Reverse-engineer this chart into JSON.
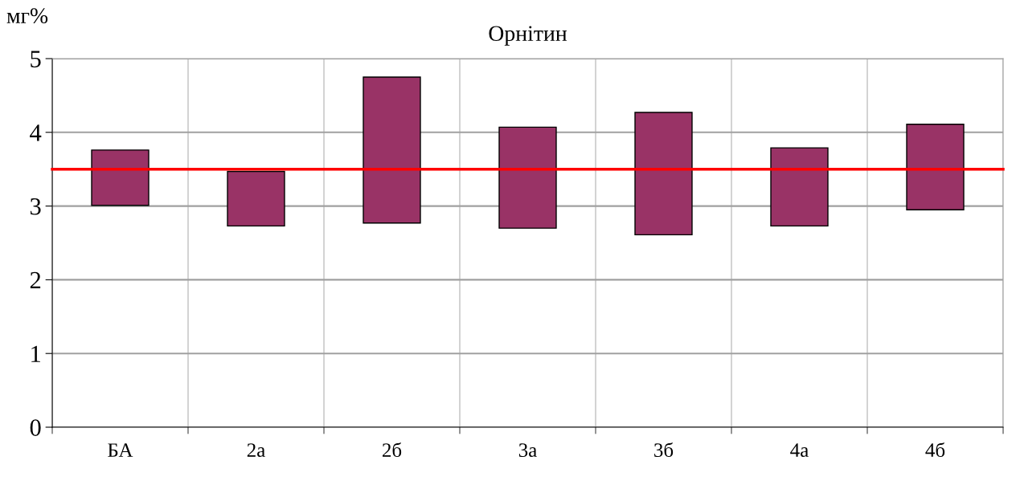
{
  "chart_data": {
    "type": "bar",
    "title": "Орнітин",
    "ylabel": "мг%",
    "categories": [
      "БА",
      "2а",
      "2б",
      "3а",
      "3б",
      "4а",
      "4б"
    ],
    "base": [
      3.01,
      2.73,
      2.77,
      2.7,
      2.61,
      2.73,
      2.95
    ],
    "values": [
      0.75,
      0.74,
      1.98,
      1.37,
      1.66,
      1.06,
      1.16
    ],
    "color": "#993366",
    "ylim": [
      0,
      5
    ],
    "yticks": [
      0,
      1,
      2,
      3,
      4,
      5
    ],
    "grid": true,
    "ref_lines": [
      {
        "axis": "y",
        "value": 3.5,
        "color": "#ff0000"
      }
    ]
  }
}
